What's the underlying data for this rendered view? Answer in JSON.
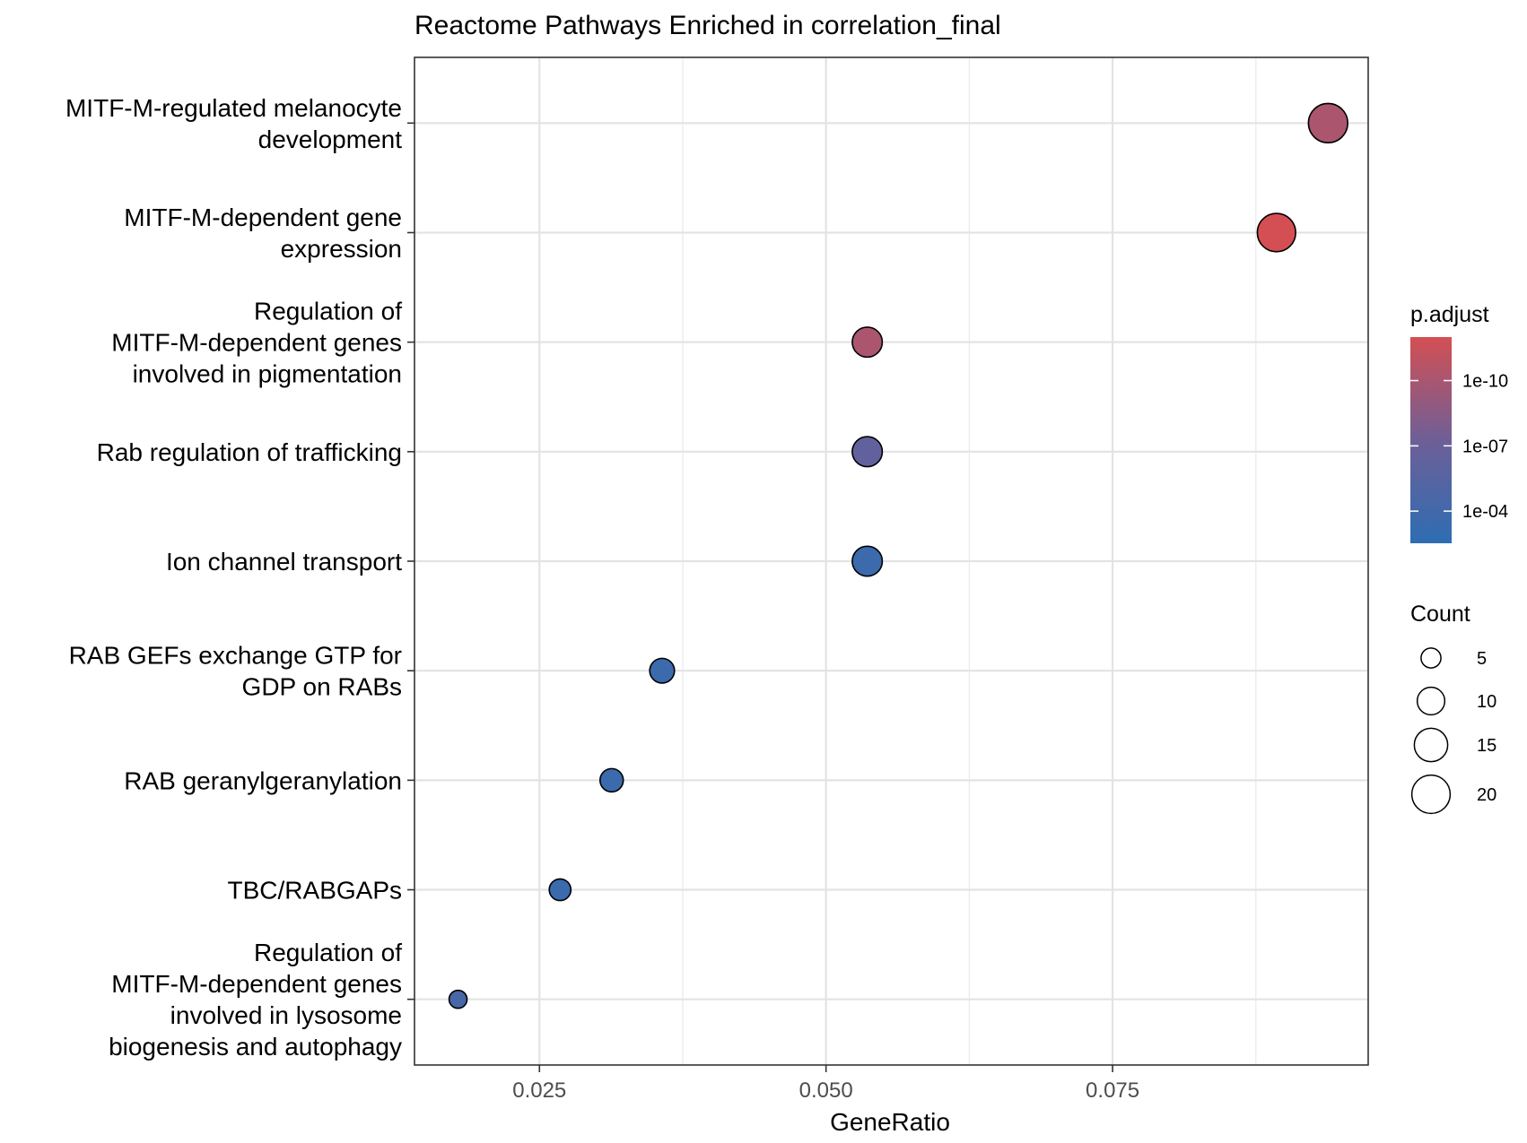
{
  "chart_data": {
    "type": "scatter",
    "title": "Reactome Pathways Enriched in correlation_final",
    "xlabel": "GeneRatio",
    "ylabel": "",
    "xlim": [
      0.0141,
      0.0973
    ],
    "xticks": [
      0.025,
      0.05,
      0.075
    ],
    "xtick_labels": [
      "0.025",
      "0.050",
      "0.075"
    ],
    "grid": true,
    "categories": [
      [
        "MITF-M-regulated melanocyte",
        "development"
      ],
      [
        "MITF-M-dependent gene",
        "expression"
      ],
      [
        "Regulation of",
        "MITF-M-dependent genes",
        "involved in pigmentation"
      ],
      [
        "Rab regulation of trafficking"
      ],
      [
        "Ion channel transport"
      ],
      [
        "RAB GEFs exchange GTP for",
        "GDP on RABs"
      ],
      [
        "RAB geranylgeranylation"
      ],
      [
        "TBC/RABGAPs"
      ],
      [
        "Regulation of",
        "MITF-M-dependent genes",
        "involved in lysosome",
        "biogenesis and autophagy"
      ]
    ],
    "points": [
      {
        "gene_ratio": 0.0938,
        "count": 21,
        "p_adjust": 1e-10
      },
      {
        "gene_ratio": 0.0893,
        "count": 20,
        "p_adjust": 1e-12
      },
      {
        "gene_ratio": 0.0536,
        "count": 12,
        "p_adjust": 1e-10
      },
      {
        "gene_ratio": 0.0536,
        "count": 12,
        "p_adjust": 1e-06
      },
      {
        "gene_ratio": 0.0536,
        "count": 12,
        "p_adjust": 0.001
      },
      {
        "gene_ratio": 0.0357,
        "count": 8,
        "p_adjust": 0.001
      },
      {
        "gene_ratio": 0.0313,
        "count": 7,
        "p_adjust": 0.001
      },
      {
        "gene_ratio": 0.0268,
        "count": 6,
        "p_adjust": 0.001
      },
      {
        "gene_ratio": 0.0179,
        "count": 4,
        "p_adjust": 0.0001
      }
    ],
    "color_legend": {
      "title": "p.adjust",
      "tick_labels": [
        "1e-10",
        "1e-07",
        "1e-04"
      ],
      "tick_values": [
        1e-10,
        1e-07,
        0.0001
      ],
      "scale": "log",
      "low_color": "#d44f53",
      "high_color": "#2e6db3",
      "mid_color": "#6e5f97",
      "range": [
        1e-12,
        0.01
      ]
    },
    "size_legend": {
      "title": "Count",
      "labels": [
        "5",
        "10",
        "15",
        "20"
      ],
      "values": [
        5,
        10,
        15,
        20
      ]
    },
    "legend_position": "right"
  }
}
